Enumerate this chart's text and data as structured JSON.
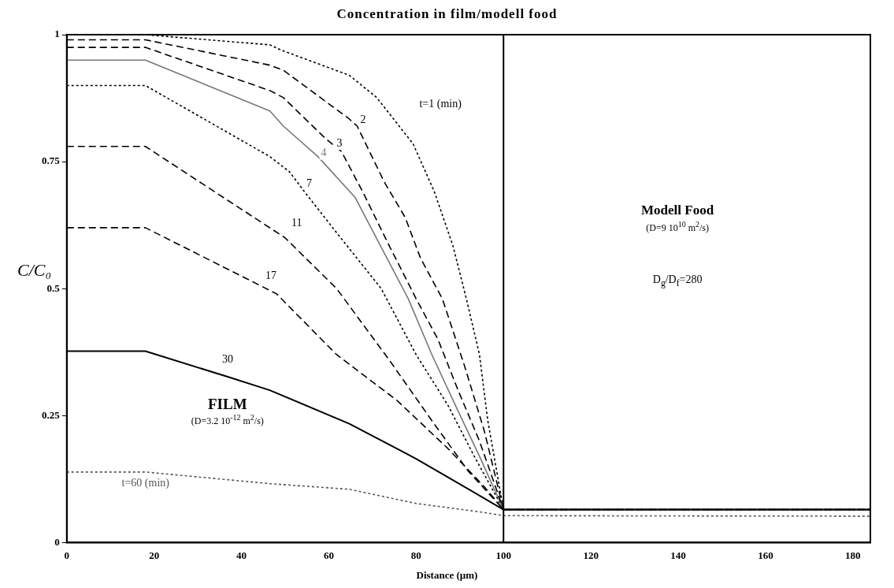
{
  "chart_data": {
    "type": "line",
    "title": "Concentration in film/modell food",
    "xlabel": "Distance (µm)",
    "ylabel": "C/C₀",
    "xlim": [
      0,
      184
    ],
    "xticks": [
      0,
      20,
      40,
      60,
      80,
      100,
      120,
      140,
      160,
      180
    ],
    "ylim": [
      0,
      1
    ],
    "yticks": [
      0,
      0.25,
      0.5,
      0.75,
      1
    ],
    "grid": false,
    "legend": false,
    "marker": "none",
    "series": [
      {
        "name": "t=1 (min)",
        "color": "#000000",
        "line_style": "dotted",
        "x": [
          0,
          18,
          46.5,
          49,
          64.7,
          71,
          79.3,
          84.2,
          88.4,
          91.5,
          94.5,
          96.4,
          100,
          184
        ],
        "values": [
          1,
          1,
          0.98,
          0.97,
          0.92,
          0.876,
          0.785,
          0.69,
          0.585,
          0.48,
          0.37,
          0.24,
          0.065,
          0.065
        ]
      },
      {
        "name": "2",
        "color": "#000000",
        "line_style": "dashed",
        "x": [
          0,
          18,
          46.5,
          49.6,
          64.7,
          66.5,
          72.7,
          77.5,
          81,
          86,
          91,
          95.6,
          100,
          184
        ],
        "values": [
          0.99,
          0.99,
          0.94,
          0.93,
          0.834,
          0.82,
          0.71,
          0.64,
          0.56,
          0.48,
          0.35,
          0.22,
          0.065,
          0.065
        ]
      },
      {
        "name": "3",
        "color": "#000000",
        "line_style": "dashed",
        "x": [
          0,
          18,
          46.5,
          49.6,
          59.3,
          62.9,
          67.8,
          73.8,
          80,
          85,
          89.6,
          94.5,
          100,
          184
        ],
        "values": [
          0.975,
          0.975,
          0.89,
          0.876,
          0.795,
          0.77,
          0.69,
          0.585,
          0.48,
          0.4,
          0.3,
          0.2,
          0.065,
          0.065
        ]
      },
      {
        "name": "4",
        "color": "#777777",
        "line_style": "solid",
        "x": [
          0,
          18,
          46.5,
          49.6,
          57.5,
          66,
          78.2,
          83.6,
          89,
          94.5,
          100
        ],
        "values": [
          0.95,
          0.95,
          0.85,
          0.82,
          0.76,
          0.68,
          0.48,
          0.37,
          0.27,
          0.17,
          0.065
        ]
      },
      {
        "name": "7",
        "color": "#000000",
        "line_style": "dotted",
        "x": [
          0,
          18,
          46.5,
          51,
          54.5,
          61.8,
          72,
          80,
          87.3,
          93.3,
          100,
          184
        ],
        "values": [
          0.9,
          0.9,
          0.76,
          0.73,
          0.69,
          0.61,
          0.5,
          0.37,
          0.27,
          0.17,
          0.065,
          0.065
        ]
      },
      {
        "name": "11",
        "color": "#000000",
        "line_style": "dashed",
        "x": [
          0,
          18,
          50,
          61.8,
          73.8,
          83.6,
          92,
          100,
          184
        ],
        "values": [
          0.78,
          0.78,
          0.6,
          0.5,
          0.36,
          0.24,
          0.14,
          0.065,
          0.065
        ]
      },
      {
        "name": "17",
        "color": "#000000",
        "line_style": "dashed",
        "x": [
          0,
          18,
          48,
          61.8,
          75.6,
          87.3,
          95.6,
          100,
          184
        ],
        "values": [
          0.62,
          0.62,
          0.49,
          0.37,
          0.28,
          0.185,
          0.11,
          0.065,
          0.065
        ]
      },
      {
        "name": "30",
        "color": "#000000",
        "line_style": "solid",
        "x": [
          0,
          18,
          37,
          46.5,
          64.7,
          80,
          92,
          100,
          184
        ],
        "values": [
          0.377,
          0.377,
          0.326,
          0.3,
          0.234,
          0.165,
          0.105,
          0.065,
          0.065
        ]
      },
      {
        "name": "t=60 (min)",
        "color": "#555555",
        "line_style": "dotted",
        "x": [
          0,
          18,
          46.5,
          64.7,
          80,
          95,
          100,
          184
        ],
        "values": [
          0.139,
          0.139,
          0.116,
          0.105,
          0.077,
          0.06,
          0.053,
          0.052
        ]
      }
    ],
    "ref_lines": [
      {
        "axis": "x",
        "value": 100,
        "color": "#000000"
      }
    ],
    "annotations": [
      "FILM",
      "(D=3.2 10$^{-12}$ m$^{2}$/s)",
      "Modell Food",
      "(D=9 10$^{10}$ m$^{2}$/s)",
      "D$_{g}$/D$_{f}$=280"
    ]
  }
}
